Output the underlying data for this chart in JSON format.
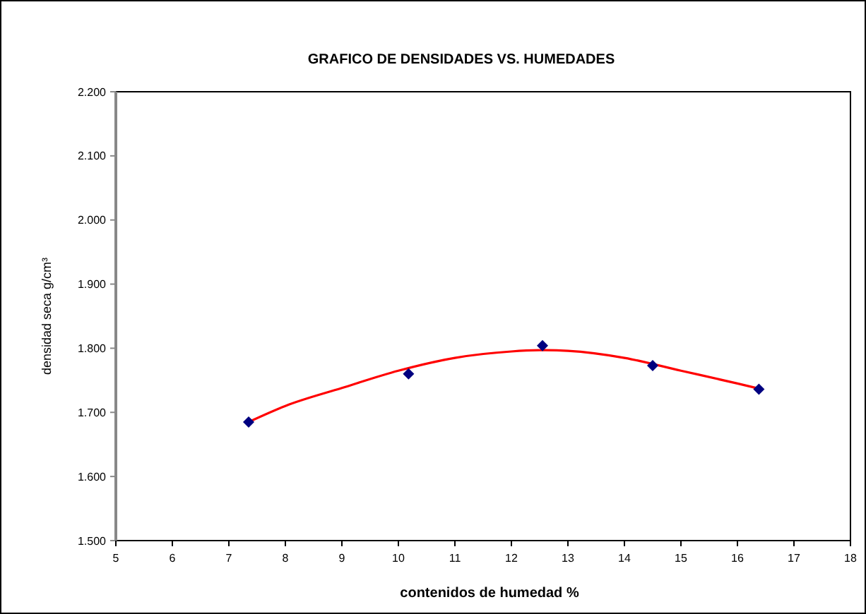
{
  "chart_data": {
    "type": "scatter",
    "title": "GRAFICO DE DENSIDADES   VS. HUMEDADES",
    "xlabel": "contenidos de humedad  %",
    "ylabel": "densidad seca  g/cm³",
    "xlim": [
      5,
      18
    ],
    "xticks": [
      5,
      6,
      7,
      8,
      9,
      10,
      11,
      12,
      13,
      14,
      15,
      16,
      17,
      18
    ],
    "ylim": [
      1.5,
      2.2
    ],
    "yticks": [
      {
        "value": 1.5,
        "label": "1.500"
      },
      {
        "value": 1.6,
        "label": "1.600"
      },
      {
        "value": 1.7,
        "label": "1.700"
      },
      {
        "value": 1.8,
        "label": "1.800"
      },
      {
        "value": 1.9,
        "label": "1.900"
      },
      {
        "value": 2.0,
        "label": "2.000"
      },
      {
        "value": 2.1,
        "label": "2.100"
      },
      {
        "value": 2.2,
        "label": "2.200"
      }
    ],
    "grid": false,
    "series": [
      {
        "color": "#000080",
        "marker": "diamond",
        "x": [
          7.35,
          10.18,
          12.55,
          14.5,
          16.38
        ],
        "values": [
          1.685,
          1.76,
          1.804,
          1.773,
          1.736
        ]
      },
      {
        "type": "line",
        "color": "#ff0000",
        "marker": "none",
        "line_style": "solid",
        "x": [
          7.35,
          8,
          9,
          10,
          11,
          12,
          12.6,
          13,
          14,
          15,
          16,
          16.38
        ],
        "values": [
          1.685,
          1.71,
          1.738,
          1.765,
          1.785,
          1.795,
          1.797,
          1.796,
          1.785,
          1.765,
          1.745,
          1.737
        ]
      }
    ]
  }
}
